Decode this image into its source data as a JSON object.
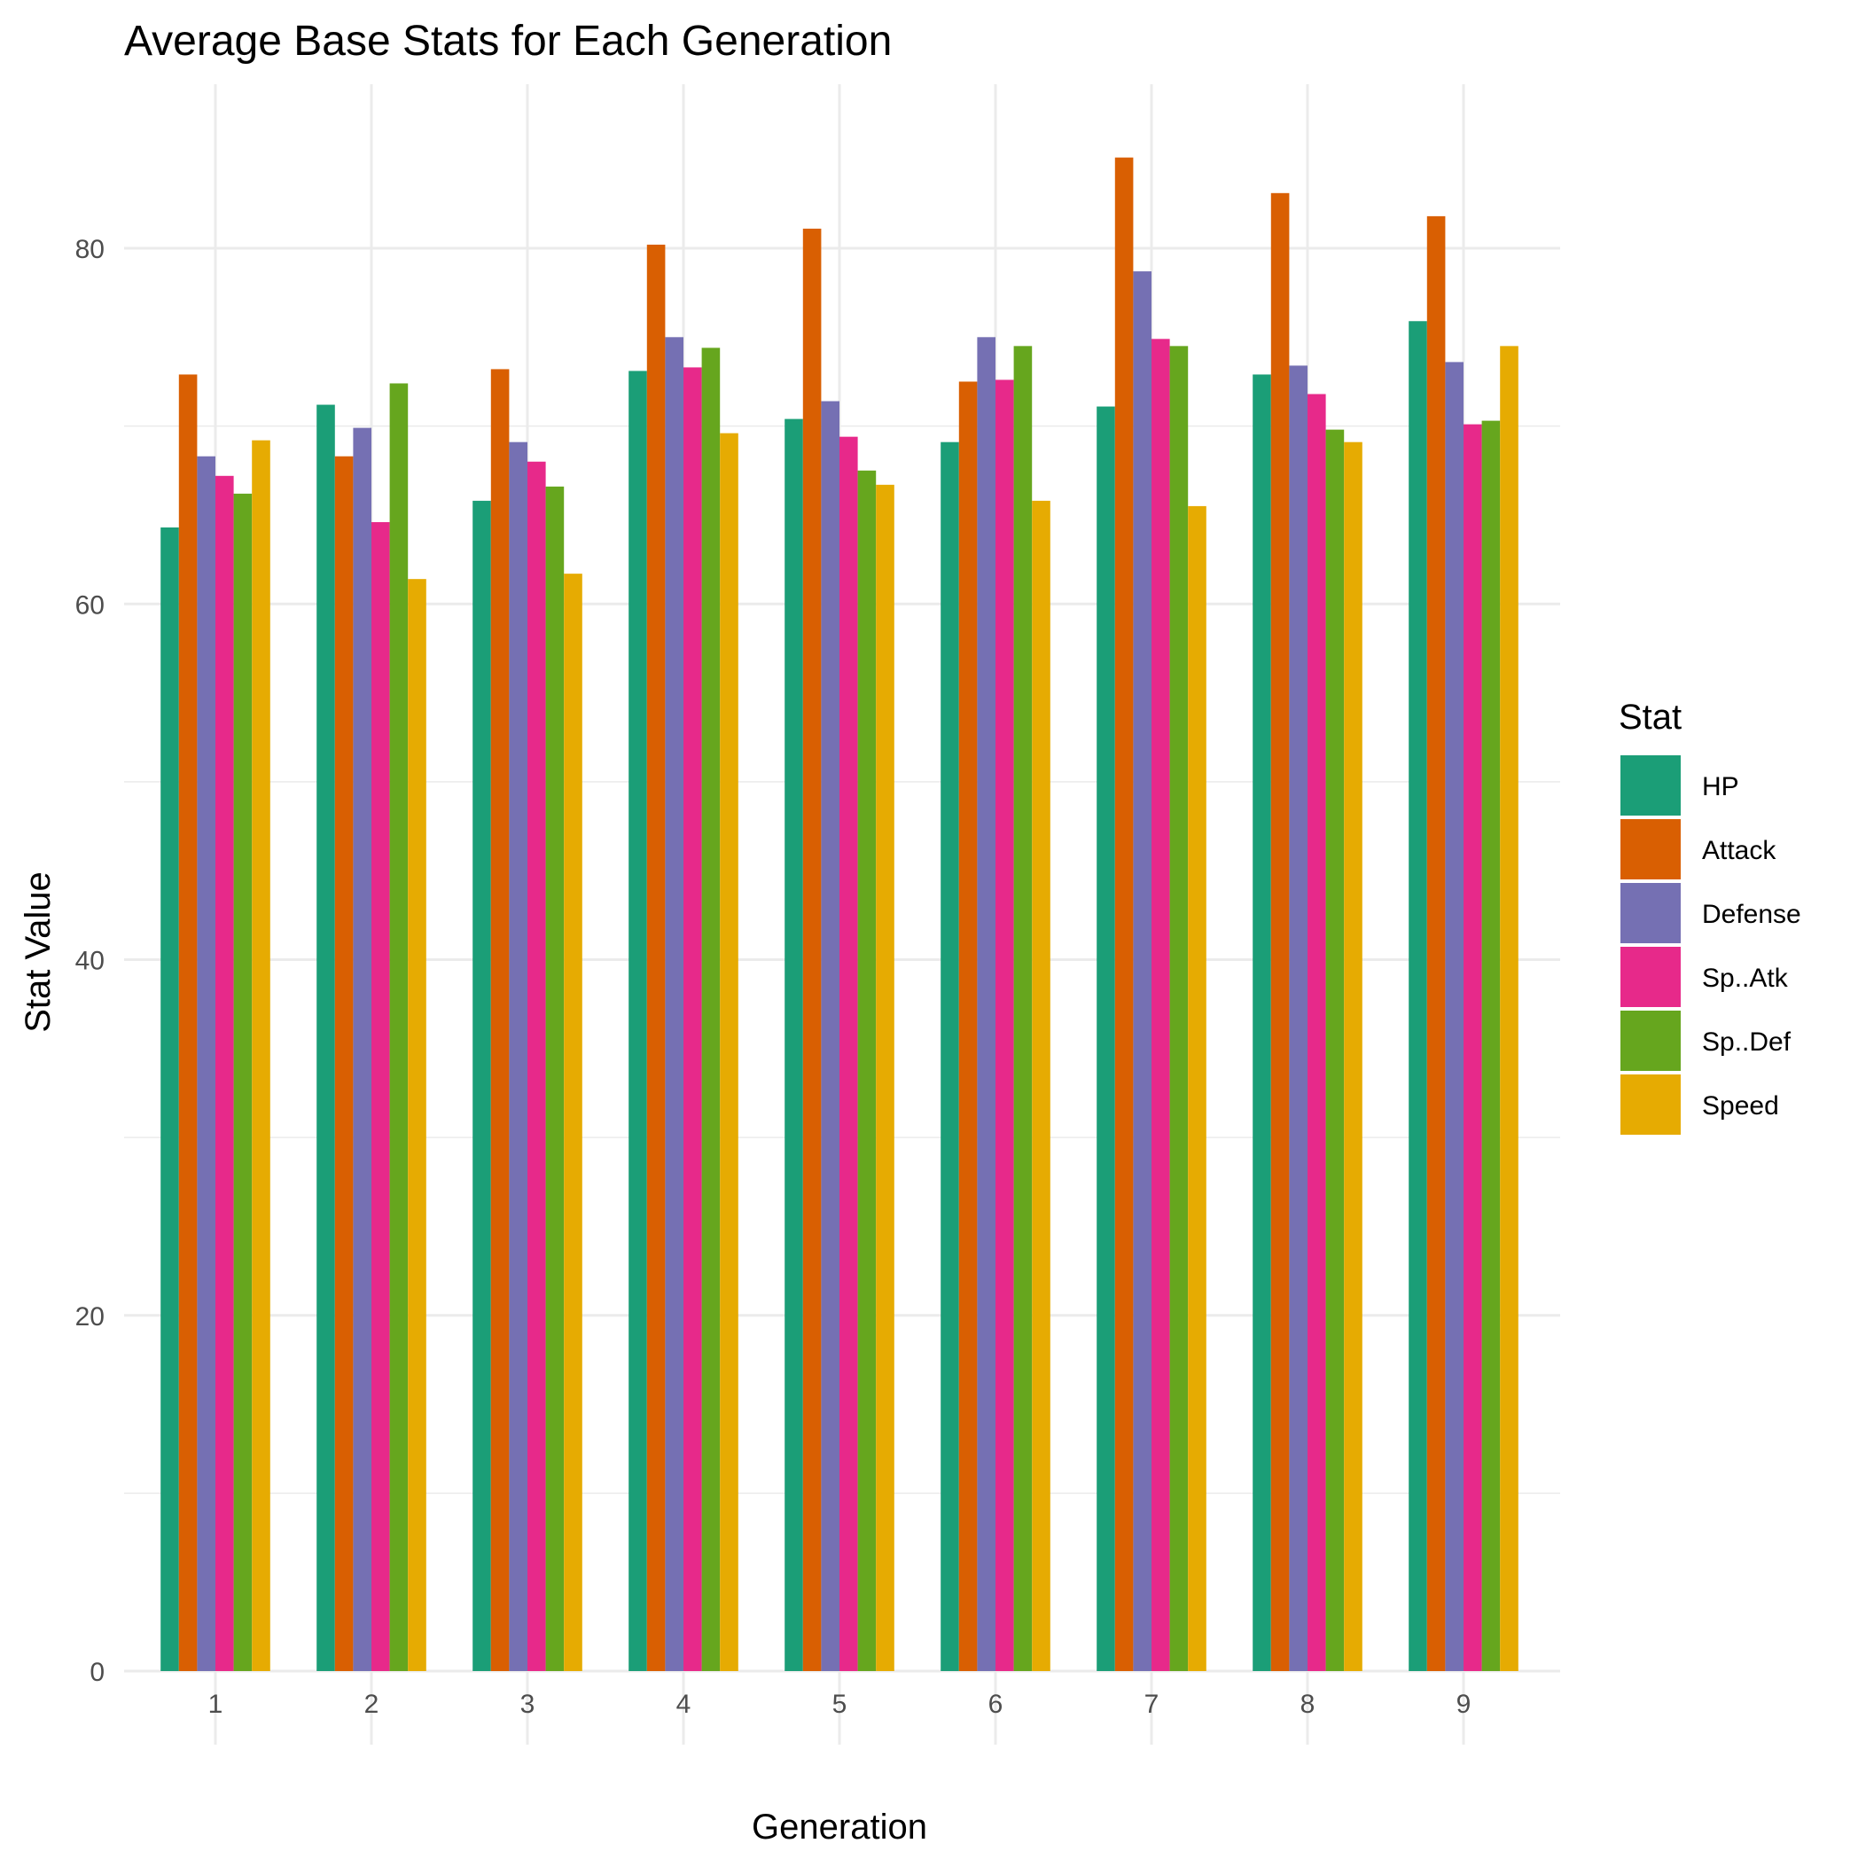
{
  "chart_data": {
    "type": "bar",
    "title": "Average Base Stats for Each Generation",
    "xlabel": "Generation",
    "ylabel": "Stat Value",
    "categories": [
      "1",
      "2",
      "3",
      "4",
      "5",
      "6",
      "7",
      "8",
      "9"
    ],
    "ylim": [
      0,
      88
    ],
    "yticks": [
      "0",
      "20",
      "40",
      "60",
      "80"
    ],
    "grid": true,
    "legend": {
      "title": "Stat",
      "position": "right"
    },
    "series": [
      {
        "name": "HP",
        "color": "#1b9e77",
        "values": [
          64.3,
          71.2,
          65.8,
          73.1,
          70.4,
          69.1,
          71.1,
          72.9,
          75.9
        ]
      },
      {
        "name": "Attack",
        "color": "#d95f02",
        "values": [
          72.9,
          68.3,
          73.2,
          80.2,
          81.1,
          72.5,
          85.1,
          83.1,
          81.8
        ]
      },
      {
        "name": "Defense",
        "color": "#7570b3",
        "values": [
          68.3,
          69.9,
          69.1,
          75.0,
          71.4,
          75.0,
          78.7,
          73.4,
          73.6
        ]
      },
      {
        "name": "Sp..Atk",
        "color": "#e7298a",
        "values": [
          67.2,
          64.6,
          68.0,
          73.3,
          69.4,
          72.6,
          74.9,
          71.8,
          70.1
        ]
      },
      {
        "name": "Sp..Def",
        "color": "#66a61e",
        "values": [
          66.2,
          72.4,
          66.6,
          74.4,
          67.5,
          74.5,
          74.5,
          69.8,
          70.3
        ]
      },
      {
        "name": "Speed",
        "color": "#e6ab02",
        "values": [
          69.2,
          61.4,
          61.7,
          69.6,
          66.7,
          65.8,
          65.5,
          69.1,
          74.5
        ]
      }
    ]
  }
}
